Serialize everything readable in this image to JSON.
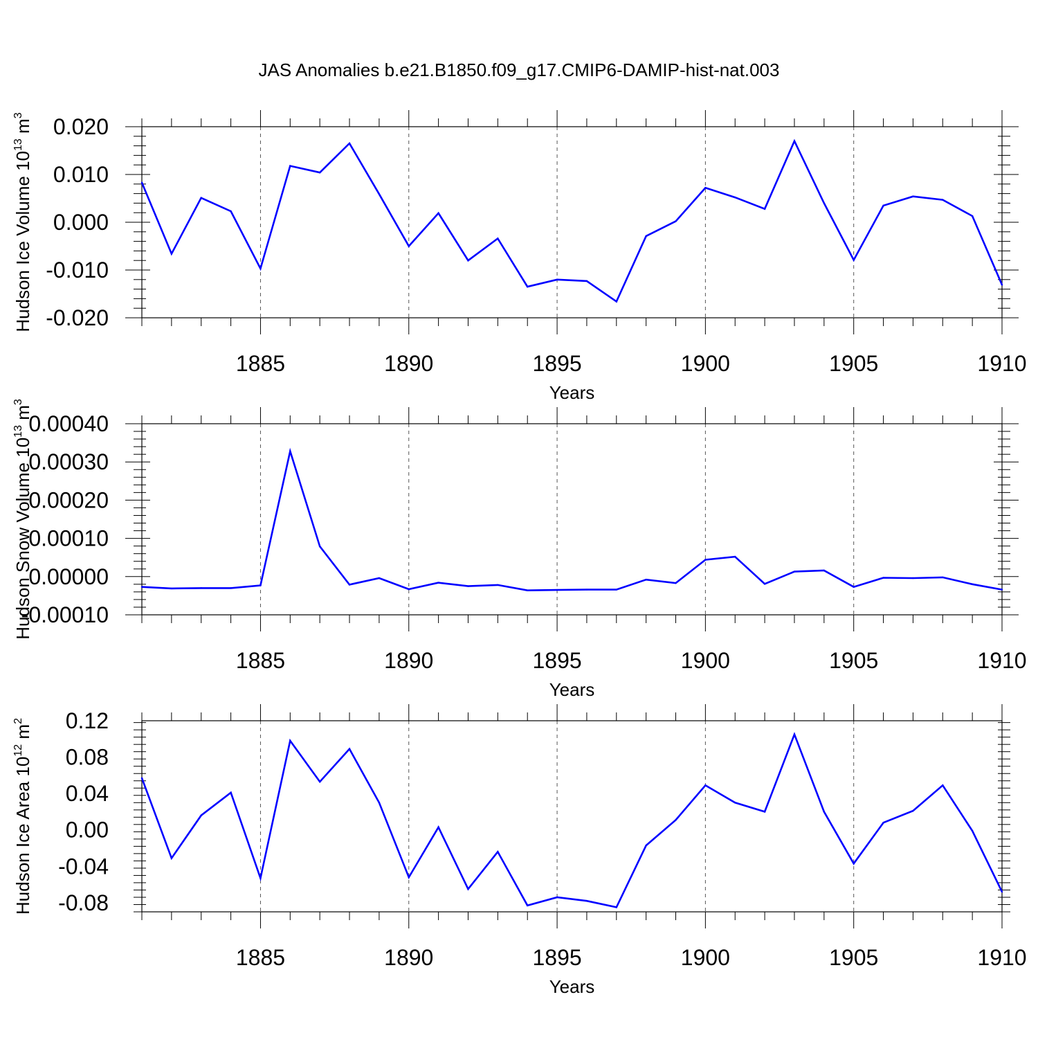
{
  "title": "JAS Anomalies b.e21.B1850.f09_g17.CMIP6-DAMIP-hist-nat.003",
  "chart_data": [
    {
      "type": "line",
      "ylabel": "Hudson Ice Volume 10",
      "ylabel_exp": "13",
      "ylabel_unit": " m",
      "ylabel_unit_exp": "3",
      "xlabel": "Years",
      "xlim": [
        1881,
        1910
      ],
      "ylim": [
        -0.02,
        0.02
      ],
      "yticks": [
        -0.02,
        -0.01,
        0.0,
        0.01,
        0.02
      ],
      "ytick_labels": [
        "-0.020",
        "-0.010",
        "0.000",
        "0.010",
        "0.020"
      ],
      "xticks": [
        1885,
        1890,
        1895,
        1900,
        1905,
        1910
      ],
      "xtick_labels": [
        "1885",
        "1890",
        "1895",
        "1900",
        "1905",
        "1910"
      ],
      "grid": "x dashed",
      "color": "#0000ff",
      "x": [
        1881,
        1882,
        1883,
        1884,
        1885,
        1886,
        1887,
        1888,
        1889,
        1890,
        1891,
        1892,
        1893,
        1894,
        1895,
        1896,
        1897,
        1898,
        1899,
        1900,
        1901,
        1902,
        1903,
        1904,
        1905,
        1906,
        1907,
        1908,
        1909,
        1910
      ],
      "values": [
        0.0083,
        -0.0066,
        0.0051,
        0.0023,
        -0.0097,
        0.0118,
        0.0104,
        0.0165,
        0.0059,
        -0.005,
        0.0019,
        -0.008,
        -0.0034,
        -0.0135,
        -0.012,
        -0.0123,
        -0.0166,
        -0.0029,
        0.0002,
        0.0072,
        0.0052,
        0.0028,
        0.017,
        0.004,
        -0.0079,
        0.0035,
        0.0054,
        0.0047,
        0.0013,
        -0.0131
      ]
    },
    {
      "type": "line",
      "ylabel": "Hudson Snow Volume 10",
      "ylabel_exp": "13",
      "ylabel_unit": " m",
      "ylabel_unit_exp": "3",
      "xlabel": "Years",
      "xlim": [
        1881,
        1910
      ],
      "ylim": [
        -0.0001,
        0.0004
      ],
      "yticks": [
        -0.0001,
        0.0,
        0.0001,
        0.0002,
        0.0003,
        0.0004
      ],
      "ytick_labels": [
        "-0.00010",
        "0.00000",
        "0.00010",
        "0.00020",
        "0.00030",
        "0.00040"
      ],
      "xticks": [
        1885,
        1890,
        1895,
        1900,
        1905,
        1910
      ],
      "xtick_labels": [
        "1885",
        "1890",
        "1895",
        "1900",
        "1905",
        "1910"
      ],
      "grid": "x dashed",
      "color": "#0000ff",
      "x": [
        1881,
        1882,
        1883,
        1884,
        1885,
        1886,
        1887,
        1888,
        1889,
        1890,
        1891,
        1892,
        1893,
        1894,
        1895,
        1896,
        1897,
        1898,
        1899,
        1900,
        1901,
        1902,
        1903,
        1904,
        1905,
        1906,
        1907,
        1908,
        1909,
        1910
      ],
      "values": [
        -2.7e-05,
        -3.1e-05,
        -3e-05,
        -3e-05,
        -2.3e-05,
        0.000328,
        7.9e-05,
        -2.1e-05,
        -4e-06,
        -3.3e-05,
        -1.6e-05,
        -2.5e-05,
        -2.2e-05,
        -3.6e-05,
        -3.5e-05,
        -3.4e-05,
        -3.4e-05,
        -8e-06,
        -1.7e-05,
        4.4e-05,
        5.2e-05,
        -1.9e-05,
        1.3e-05,
        1.6e-05,
        -2.7e-05,
        -3e-06,
        -4e-06,
        -2e-06,
        -2e-05,
        -3.4e-05
      ]
    },
    {
      "type": "line",
      "ylabel": "Hudson Ice Area 10",
      "ylabel_exp": "12",
      "ylabel_unit": " m",
      "ylabel_unit_exp": "2",
      "xlabel": "Years",
      "xlim": [
        1881,
        1910
      ],
      "ylim": [
        -0.09,
        0.12
      ],
      "yticks": [
        -0.08,
        -0.04,
        0.0,
        0.04,
        0.08,
        0.12
      ],
      "ytick_labels": [
        "-0.08",
        "-0.04",
        "0.00",
        "0.04",
        "0.08",
        "0.12"
      ],
      "xticks": [
        1885,
        1890,
        1895,
        1900,
        1905,
        1910
      ],
      "xtick_labels": [
        "1885",
        "1890",
        "1895",
        "1900",
        "1905",
        "1910"
      ],
      "grid": "x dashed",
      "color": "#0000ff",
      "x": [
        1881,
        1882,
        1883,
        1884,
        1885,
        1886,
        1887,
        1888,
        1889,
        1890,
        1891,
        1892,
        1893,
        1894,
        1895,
        1896,
        1897,
        1898,
        1899,
        1900,
        1901,
        1902,
        1903,
        1904,
        1905,
        1906,
        1907,
        1908,
        1909,
        1910
      ],
      "values": [
        0.057,
        -0.031,
        0.016,
        0.041,
        -0.053,
        0.098,
        0.053,
        0.089,
        0.03,
        -0.052,
        0.003,
        -0.065,
        -0.024,
        -0.083,
        -0.074,
        -0.078,
        -0.085,
        -0.017,
        0.011,
        0.049,
        0.03,
        0.02,
        0.105,
        0.02,
        -0.037,
        0.008,
        0.021,
        0.049,
        -0.001,
        -0.068
      ]
    }
  ]
}
